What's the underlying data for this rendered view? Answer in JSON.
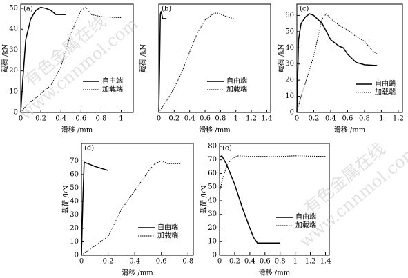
{
  "watermarks": [
    "有色金属在线",
    "www.cnnmol.com"
  ],
  "chart_data": [
    {
      "type": "line",
      "label": "(a)",
      "xlabel": "滑移 /mm",
      "ylabel": "载荷 /kN",
      "xlim": [
        0,
        1.12
      ],
      "ylim": [
        0,
        52
      ],
      "xticks": [
        0,
        0.2,
        0.4,
        0.6,
        0.8,
        1.0
      ],
      "yticks": [
        0,
        10,
        20,
        30,
        40,
        50
      ],
      "series": [
        {
          "name": "自由端",
          "color": "#000",
          "style": "solid",
          "x": [
            0,
            0.02,
            0.05,
            0.1,
            0.15,
            0.2,
            0.25,
            0.3,
            0.35,
            0.45
          ],
          "values": [
            0,
            15,
            35,
            45,
            49,
            50.5,
            50,
            49,
            47,
            47
          ]
        },
        {
          "name": "加载端",
          "color": "#000",
          "style": "dotted",
          "x": [
            0,
            0.05,
            0.1,
            0.2,
            0.3,
            0.4,
            0.5,
            0.6,
            0.65,
            0.7,
            0.8,
            1.0
          ],
          "values": [
            0,
            3,
            5,
            9,
            13,
            22,
            38,
            49,
            50.5,
            47,
            46,
            45.5
          ]
        }
      ]
    },
    {
      "type": "line",
      "label": "(b)",
      "xlabel": "滑移 /mm",
      "ylabel": "载荷 /kN",
      "xlim": [
        0,
        1.45
      ],
      "ylim": [
        0,
        75
      ],
      "xticks": [
        0,
        0.2,
        0.4,
        0.6,
        0.8,
        1.0,
        1.2,
        1.4
      ],
      "series": [
        {
          "name": "自由端",
          "color": "#000",
          "style": "solid",
          "x": [
            0,
            0.01,
            0.02,
            0.03,
            0.05,
            0.1
          ],
          "values": [
            0,
            30,
            68,
            70,
            65,
            65
          ]
        },
        {
          "name": "加载端",
          "color": "#000",
          "style": "dotted",
          "x": [
            0,
            0.1,
            0.2,
            0.3,
            0.4,
            0.5,
            0.6,
            0.7,
            0.75,
            0.8,
            0.9,
            0.97
          ],
          "values": [
            0,
            8,
            17,
            28,
            42,
            55,
            64,
            68,
            69,
            68,
            66,
            65
          ]
        }
      ]
    },
    {
      "type": "line",
      "label": "(c)",
      "xlabel": "滑移 /mm",
      "ylabel": "载荷 /kN",
      "xlim": [
        0,
        1.25
      ],
      "ylim": [
        0,
        67
      ],
      "xticks": [
        0,
        0.2,
        0.4,
        0.6,
        0.8,
        1.0,
        1.2
      ],
      "yticks": [
        0,
        10,
        20,
        30,
        40,
        50,
        60
      ],
      "series": [
        {
          "name": "自由端",
          "color": "#000",
          "style": "solid",
          "x": [
            0,
            0.02,
            0.05,
            0.1,
            0.15,
            0.2,
            0.3,
            0.4,
            0.5,
            0.55,
            0.6,
            0.7,
            0.8,
            0.95
          ],
          "values": [
            0,
            45,
            55,
            59,
            61,
            60,
            55,
            45,
            41,
            40,
            36,
            31,
            29.5,
            29
          ]
        },
        {
          "name": "加载端",
          "color": "#000",
          "style": "dotted",
          "x": [
            0,
            0.05,
            0.1,
            0.2,
            0.3,
            0.35,
            0.4,
            0.5,
            0.6,
            0.7,
            0.8,
            0.9,
            0.95
          ],
          "values": [
            0,
            10,
            18,
            35,
            58,
            61,
            58,
            54,
            51,
            47,
            44,
            38,
            36
          ]
        }
      ]
    },
    {
      "type": "line",
      "label": "(d)",
      "xlabel": "滑移 /mm",
      "ylabel": "载荷 /kN",
      "xlim": [
        0,
        0.84
      ],
      "ylim": [
        0,
        83
      ],
      "xticks": [
        0,
        0.2,
        0.4,
        0.6,
        0.8
      ],
      "yticks": [
        0,
        10,
        20,
        30,
        40,
        50,
        60,
        70
      ],
      "series": [
        {
          "name": "自由端",
          "color": "#000",
          "style": "solid",
          "x": [
            0,
            0.01,
            0.02,
            0.05,
            0.1,
            0.2
          ],
          "values": [
            0,
            40,
            69,
            68,
            66,
            63
          ]
        },
        {
          "name": "加载端",
          "color": "#000",
          "style": "dotted",
          "x": [
            0,
            0.1,
            0.2,
            0.3,
            0.4,
            0.5,
            0.55,
            0.6,
            0.65,
            0.7,
            0.75
          ],
          "values": [
            0,
            7,
            14,
            34,
            48,
            62,
            68,
            70,
            68,
            68,
            68
          ]
        }
      ]
    },
    {
      "type": "line",
      "label": "(e)",
      "xlabel": "滑移 /mm",
      "ylabel": "载荷 /kN",
      "xlim": [
        0,
        1.45
      ],
      "ylim": [
        0,
        82
      ],
      "xticks": [
        0,
        0.2,
        0.4,
        0.6,
        0.8,
        1.0,
        1.2,
        1.4
      ],
      "yticks": [
        0,
        10,
        20,
        30,
        40,
        50,
        60,
        70,
        80
      ],
      "series": [
        {
          "name": "自由端",
          "color": "#000",
          "style": "solid",
          "x": [
            0,
            0.03,
            0.08,
            0.12,
            0.2,
            0.3,
            0.4,
            0.45,
            0.5,
            0.8
          ],
          "values": [
            72,
            73,
            68,
            63,
            52,
            35,
            20,
            13,
            9,
            9
          ]
        },
        {
          "name": "加载端",
          "color": "#000",
          "style": "dotted",
          "x": [
            0,
            0.05,
            0.1,
            0.15,
            0.2,
            0.25,
            0.4,
            0.8,
            1.0,
            1.4
          ],
          "values": [
            47,
            58,
            66,
            70,
            72,
            73,
            72.5,
            72.5,
            73,
            72.5
          ]
        }
      ]
    }
  ]
}
